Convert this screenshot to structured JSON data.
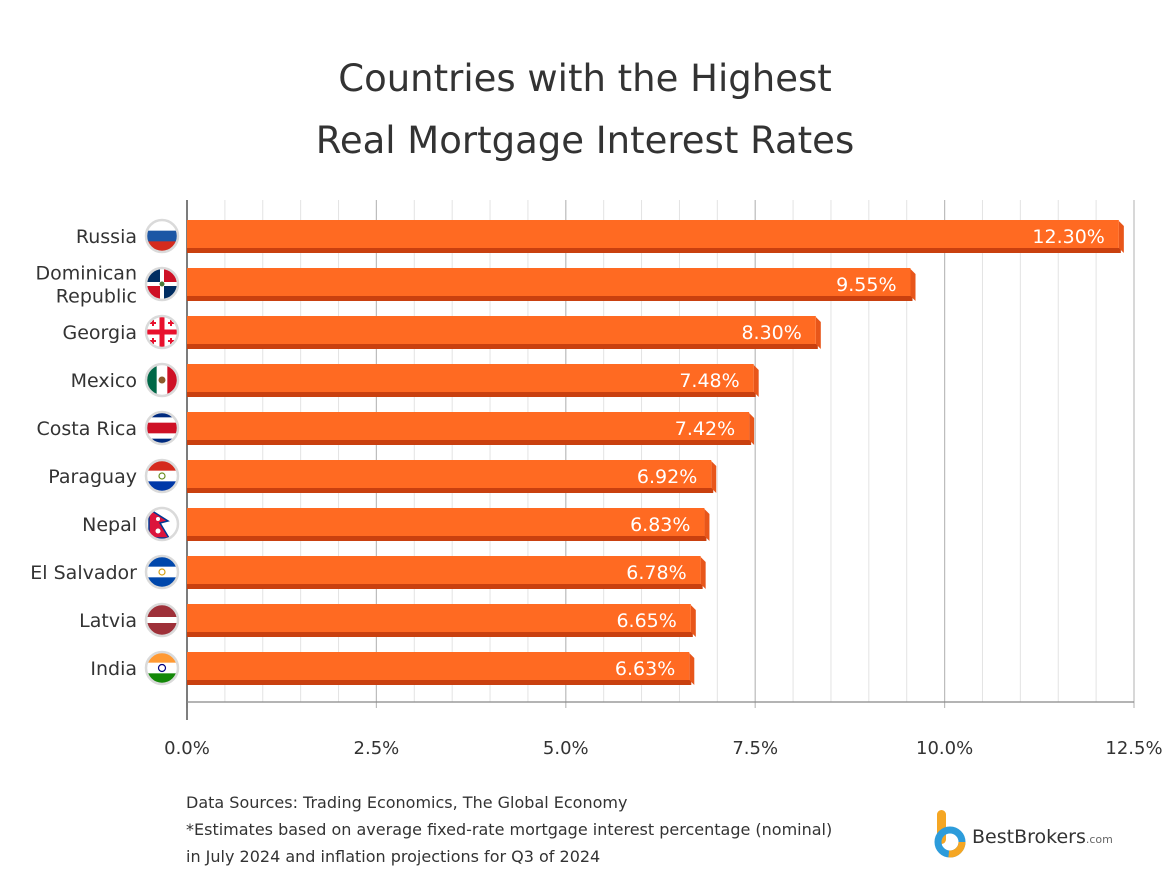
{
  "title_line1": "Countries with the Highest",
  "title_line2": "Real Mortgage Interest Rates",
  "notes": {
    "line1": "Data Sources: Trading Economics, The Global Economy",
    "line2": "*Estimates based on average fixed-rate mortgage interest percentage (nominal)",
    "line3": "in July 2024 and inflation projections for Q3 of 2024"
  },
  "logo": {
    "name": "BestBrokers",
    "suffix": ".com"
  },
  "colors": {
    "bar": "#FF6A22",
    "bar_shadow": "#C9400F",
    "grid_major": "#BDBDBD",
    "grid_minor": "#E3E3E3",
    "text": "#333333"
  },
  "chart_data": {
    "type": "bar",
    "orientation": "horizontal",
    "categories": [
      "Russia",
      "Dominican Republic",
      "Georgia",
      "Mexico",
      "Costa Rica",
      "Paraguay",
      "Nepal",
      "El Salvador",
      "Latvia",
      "India"
    ],
    "category_lines": [
      [
        "Russia"
      ],
      [
        "Dominican",
        "Republic"
      ],
      [
        "Georgia"
      ],
      [
        "Mexico"
      ],
      [
        "Costa Rica"
      ],
      [
        "Paraguay"
      ],
      [
        "Nepal"
      ],
      [
        "El Salvador"
      ],
      [
        "Latvia"
      ],
      [
        "India"
      ]
    ],
    "flags": [
      "russia-flag",
      "dominican-republic-flag",
      "georgia-flag",
      "mexico-flag",
      "costa-rica-flag",
      "paraguay-flag",
      "nepal-flag",
      "el-salvador-flag",
      "latvia-flag",
      "india-flag"
    ],
    "values": [
      12.3,
      9.55,
      8.3,
      7.48,
      7.42,
      6.92,
      6.83,
      6.78,
      6.65,
      6.63
    ],
    "value_labels": [
      "12.30%",
      "9.55%",
      "8.30%",
      "7.48%",
      "7.42%",
      "6.92%",
      "6.83%",
      "6.78%",
      "6.65%",
      "6.63%"
    ],
    "xlim": [
      0,
      12.5
    ],
    "xticks": [
      0,
      2.5,
      5,
      7.5,
      10,
      12.5
    ],
    "xtick_labels": [
      "0.0%",
      "2.5%",
      "5.0%",
      "7.5%",
      "10.0%",
      "12.5%"
    ],
    "minor_grid_step": 0.5,
    "grid": true,
    "legend": "none"
  }
}
